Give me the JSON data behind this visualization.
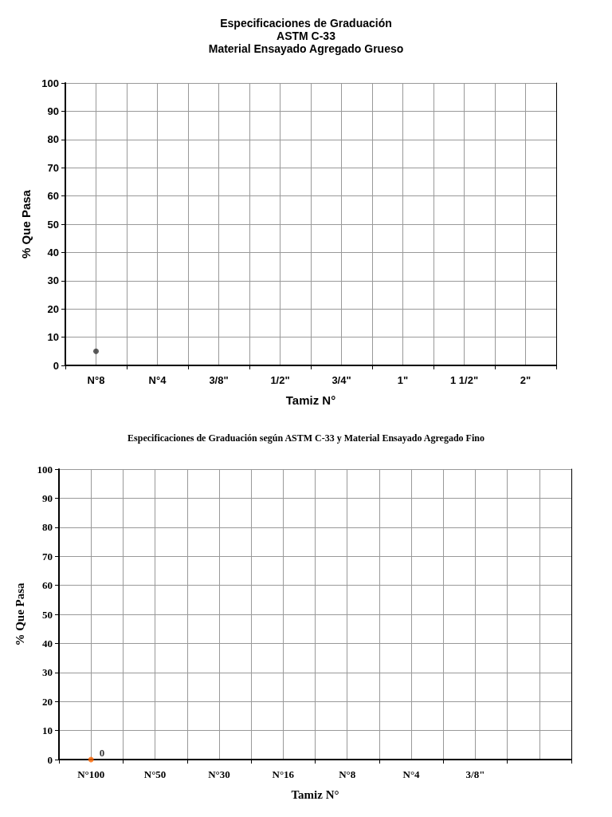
{
  "chart_data": [
    {
      "type": "scatter",
      "title": "Especificaciones de Graduación\nASTM C-33\nMaterial Ensayado Agregado Grueso",
      "xlabel": "Tamiz N°",
      "ylabel": "% Que Pasa",
      "categories": [
        "N°8",
        "N°4",
        "3/8\"",
        "1/2\"",
        "3/4\"",
        "1\"",
        "1 1/2\"",
        "2\""
      ],
      "series": [
        {
          "color": "#333333",
          "values": [
            5,
            null,
            null,
            null,
            null,
            null,
            null,
            null
          ]
        }
      ],
      "ylim": [
        0,
        100
      ],
      "yticks": [
        0,
        10,
        20,
        30,
        40,
        50,
        60,
        70,
        80,
        90,
        100
      ],
      "grid": true,
      "marker": "circle"
    },
    {
      "type": "scatter",
      "title": "Especificaciones de Graduación según ASTM C-33 y Material Ensayado Agregado Fino",
      "xlabel": "Tamiz N°",
      "ylabel": "% Que Pasa",
      "categories": [
        "N°100",
        "N°50",
        "N°30",
        "N°16",
        "N°8",
        "N°4",
        "3/8\"",
        null
      ],
      "series": [
        {
          "color": "#ff6600",
          "values": [
            0,
            null,
            null,
            null,
            null,
            null,
            null,
            null
          ]
        }
      ],
      "ylim": [
        0,
        100
      ],
      "yticks": [
        0,
        10,
        20,
        30,
        40,
        50,
        60,
        70,
        80,
        90,
        100
      ],
      "grid": true,
      "marker": "circle",
      "data_labels": true
    }
  ]
}
